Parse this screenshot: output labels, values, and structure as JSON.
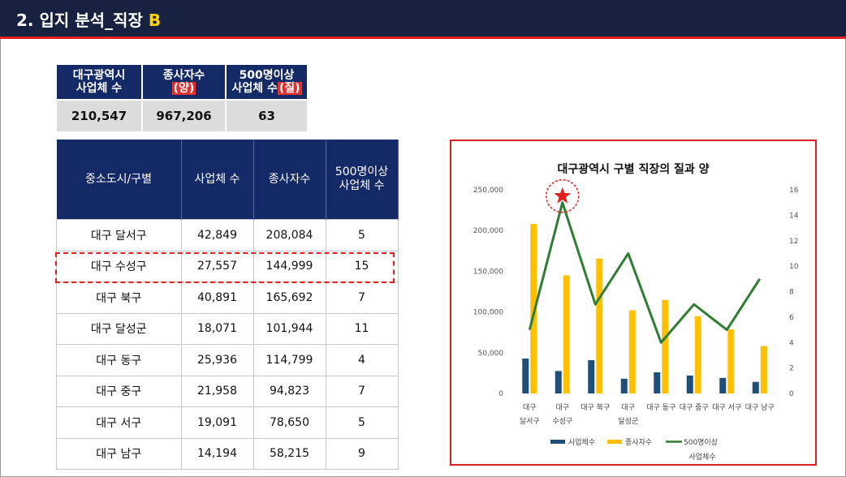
{
  "header": {
    "title_main": "2. 입지 분석_직장 ",
    "title_accent": "B"
  },
  "summary": {
    "h1_l1": "대구광역시",
    "h1_l2": "사업체 수",
    "h2_l1": "종사자수",
    "h2_tag": "(양)",
    "h3_l1": "500명이상",
    "h3_l2": "사업체 수",
    "h3_tag": "(질)",
    "v1": "210,547",
    "v2": "967,206",
    "v3": "63"
  },
  "table": {
    "headers": [
      "중소도시/구별",
      "사업체 수",
      "종사자수",
      "500명이상 사업체 수"
    ],
    "header4_l1": "500명이상",
    "header4_l2": "사업체 수",
    "rows": [
      [
        "대구 달서구",
        "42,849",
        "208,084",
        "5"
      ],
      [
        "대구 수성구",
        "27,557",
        "144,999",
        "15"
      ],
      [
        "대구 북구",
        "40,891",
        "165,692",
        "7"
      ],
      [
        "대구 달성군",
        "18,071",
        "101,944",
        "11"
      ],
      [
        "대구 동구",
        "25,936",
        "114,799",
        "4"
      ],
      [
        "대구 중구",
        "21,958",
        "94,823",
        "7"
      ],
      [
        "대구 서구",
        "19,091",
        "78,650",
        "5"
      ],
      [
        "대구 남구",
        "14,194",
        "58,215",
        "9"
      ]
    ]
  },
  "chart_data": {
    "type": "bar",
    "title": "대구광역시 구별 직장의 질과 양",
    "categories": [
      "대구 달서구",
      "대구 수성구",
      "대구 북구",
      "대구 달성군",
      "대구 동구",
      "대구 중구",
      "대구 서구",
      "대구 남구"
    ],
    "category_labels": [
      [
        "대구",
        "달서구"
      ],
      [
        "대구",
        "수성구"
      ],
      [
        "대구 북구"
      ],
      [
        "대구",
        "달성군"
      ],
      [
        "대구 동구"
      ],
      [
        "대구 중구"
      ],
      [
        "대구 서구"
      ],
      [
        "대구 남구"
      ]
    ],
    "series": [
      {
        "name": "사업체수",
        "type": "bar",
        "axis": "left",
        "color": "#1f4e79",
        "values": [
          42849,
          27557,
          40891,
          18071,
          25936,
          21958,
          19091,
          14194
        ]
      },
      {
        "name": "종사자수",
        "type": "bar",
        "axis": "left",
        "color": "#ffc000",
        "values": [
          208084,
          144999,
          165692,
          101944,
          114799,
          94823,
          78650,
          58215
        ]
      },
      {
        "name": "500명이상 사업체수",
        "type": "line",
        "axis": "right",
        "color": "#2e7d32",
        "values": [
          5,
          15,
          7,
          11,
          4,
          7,
          5,
          9
        ]
      }
    ],
    "y_left": {
      "min": 0,
      "max": 250000,
      "ticks": [
        "0",
        "50,000",
        "100,000",
        "150,000",
        "200,000",
        "250,000"
      ]
    },
    "y_right": {
      "min": 0,
      "max": 16,
      "ticks": [
        "0",
        "2",
        "4",
        "6",
        "8",
        "10",
        "12",
        "14",
        "16"
      ]
    },
    "legend": {
      "position": "bottom",
      "items": [
        "사업체수",
        "종사자수",
        "500명이상",
        "사업체수"
      ]
    },
    "highlight_category": "대구 수성구"
  }
}
